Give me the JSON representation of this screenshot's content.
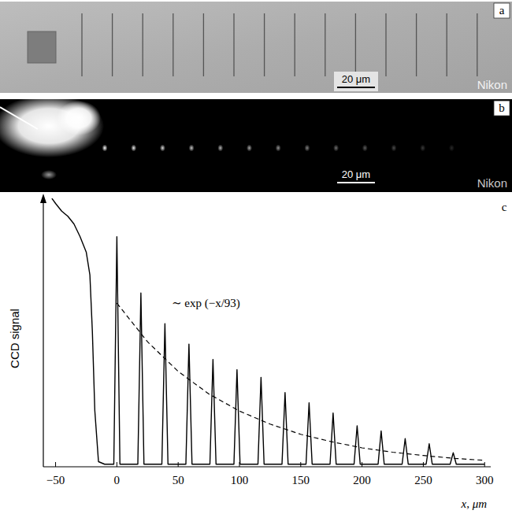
{
  "panels": [
    {
      "label": "a",
      "scale_bar": "20 μm",
      "watermark": "Nikon"
    },
    {
      "label": "b",
      "scale_bar": "20 μm",
      "watermark": "Nikon"
    },
    {
      "label": "c"
    }
  ],
  "chart_data": {
    "type": "line",
    "x_label": "x, μm",
    "y_label": "CCD signal",
    "annotation": "∼ exp (−x/93)",
    "xlim": [
      -60,
      305
    ],
    "xticks": [
      {
        "value": -50,
        "label": "−50"
      },
      0,
      50,
      100,
      150,
      200,
      250,
      300
    ],
    "ylim": [
      0,
      1.05
    ],
    "tick_labels": "x",
    "grid": false,
    "series": [
      {
        "color": "#000000",
        "line_style": "solid",
        "x": [
          -53,
          -50,
          -45,
          -40,
          -35,
          -30,
          -25,
          -22,
          -20,
          -18,
          -15,
          -10,
          -2.5,
          0,
          2.5,
          17.1,
          19.6,
          22.1,
          36.7,
          39.2,
          41.7,
          56.3,
          58.8,
          61.3,
          75.9,
          78.4,
          80.9,
          95.5,
          98,
          100.5,
          115.1,
          117.6,
          120.1,
          134.7,
          137.2,
          139.7,
          154.3,
          156.8,
          159.3,
          173.9,
          176.4,
          178.9,
          193.5,
          196,
          198.5,
          213.1,
          215.6,
          218.1,
          232.7,
          235.2,
          237.7,
          252.3,
          254.8,
          257.3,
          271.9,
          274.4,
          276.9,
          300
        ],
        "values": [
          1.05,
          1.03,
          1.0,
          0.98,
          0.95,
          0.9,
          0.84,
          0.75,
          0.53,
          0.22,
          0.02,
          0.01,
          0.01,
          0.9,
          0.01,
          0.01,
          0.68,
          0.01,
          0.01,
          0.56,
          0.01,
          0.01,
          0.48,
          0.01,
          0.01,
          0.42,
          0.01,
          0.01,
          0.38,
          0.01,
          0.01,
          0.35,
          0.01,
          0.01,
          0.29,
          0.01,
          0.01,
          0.25,
          0.01,
          0.01,
          0.21,
          0.01,
          0.01,
          0.16,
          0.01,
          0.01,
          0.14,
          0.01,
          0.01,
          0.11,
          0.01,
          0.01,
          0.09,
          0.01,
          0.01,
          0.055,
          0.01,
          0.01
        ]
      },
      {
        "color": "#000000",
        "line_style": "dashed",
        "x": [
          0,
          25,
          50,
          75,
          100,
          125,
          150,
          175,
          200,
          225,
          250,
          275,
          300
        ],
        "values": [
          0.64,
          0.489,
          0.373,
          0.285,
          0.218,
          0.167,
          0.127,
          0.098,
          0.074,
          0.057,
          0.044,
          0.033,
          0.025
        ]
      }
    ]
  }
}
